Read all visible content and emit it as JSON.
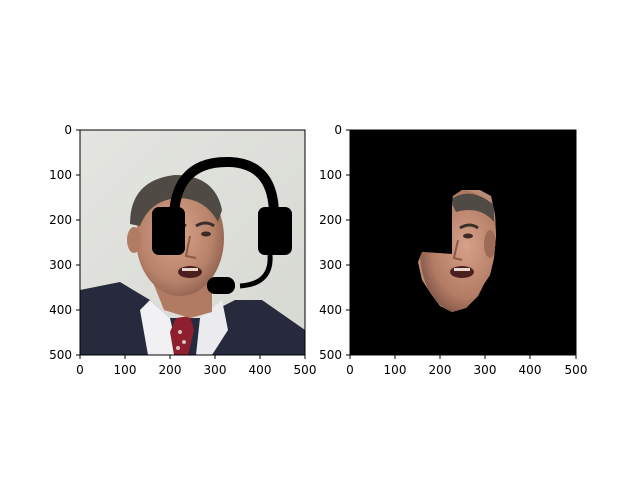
{
  "figure": {
    "panels": [
      {
        "name": "left",
        "content": "photo-with-headset-overlay",
        "x_ticks": [
          "0",
          "100",
          "200",
          "300",
          "400",
          "500"
        ],
        "y_ticks": [
          "0",
          "100",
          "200",
          "300",
          "400",
          "500"
        ],
        "xlim": [
          0,
          500
        ],
        "ylim": [
          500,
          0
        ]
      },
      {
        "name": "right",
        "content": "masked-face-on-black",
        "x_ticks": [
          "0",
          "100",
          "200",
          "300",
          "400",
          "500"
        ],
        "y_ticks": [
          "0",
          "100",
          "200",
          "300",
          "400",
          "500"
        ],
        "xlim": [
          0,
          500
        ],
        "ylim": [
          500,
          0
        ]
      }
    ],
    "colors": {
      "background": "#ffffff",
      "mask_background": "#000000",
      "headset": "#000000"
    },
    "icons": [
      "headset-icon"
    ]
  }
}
